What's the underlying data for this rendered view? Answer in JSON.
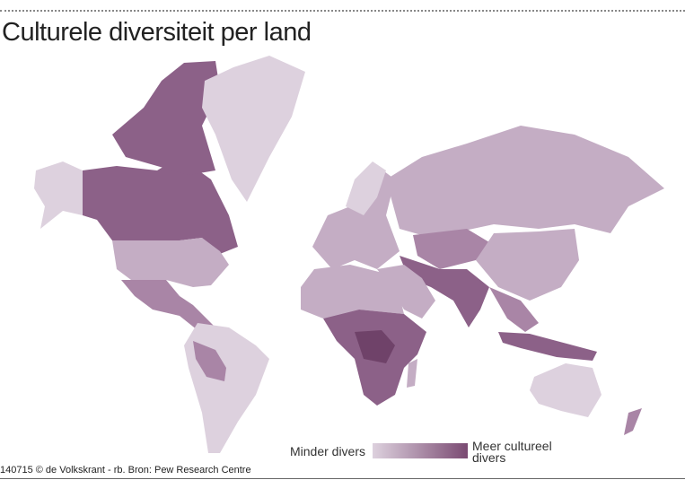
{
  "header": {
    "title": "Culturele diversiteit per land"
  },
  "legend": {
    "low": "Minder divers",
    "high": "Meer cultureel divers"
  },
  "footer": {
    "credit": "140715 © de Volkskrant - rb. Bron: Pew Research Centre"
  }
}
